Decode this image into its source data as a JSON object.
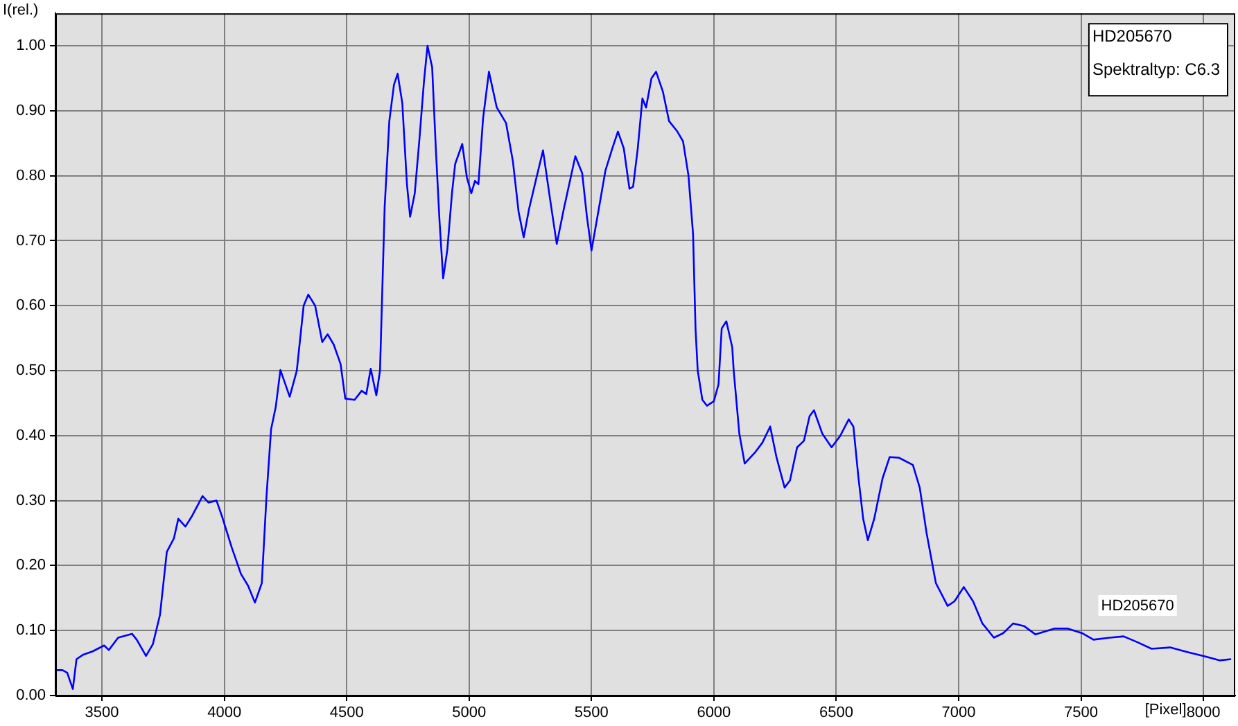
{
  "chart_data": {
    "type": "line",
    "xlabel": "[Pixel]",
    "ylabel": "I(rel.)",
    "annotations": [
      "HD205670",
      "Spektraltyp: C6.3"
    ],
    "xlim": [
      3310,
      8130
    ],
    "ylim": [
      0,
      1.05
    ],
    "xticks": [
      3500,
      4000,
      4500,
      5000,
      5500,
      6000,
      6500,
      7000,
      7500,
      8000
    ],
    "yticks": [
      {
        "value": 0,
        "label": "0.00"
      },
      {
        "value": 0.1,
        "label": "0.10"
      },
      {
        "value": 0.2,
        "label": "0.20"
      },
      {
        "value": 0.3,
        "label": "0.30"
      },
      {
        "value": 0.4,
        "label": "0.40"
      },
      {
        "value": 0.5,
        "label": "0.50"
      },
      {
        "value": 0.6,
        "label": "0.60"
      },
      {
        "value": 0.7,
        "label": "0.70"
      },
      {
        "value": 0.8,
        "label": "0.80"
      },
      {
        "value": 0.9,
        "label": "0.90"
      },
      {
        "value": 1,
        "label": "1.00"
      }
    ],
    "grid": true,
    "legend": false,
    "marker": "none",
    "line_style": "solid",
    "series": [
      {
        "name": "HD205670",
        "color": "#0000ff",
        "x": [
          3311,
          3339,
          3358,
          3381,
          3396,
          3424,
          3462,
          3509,
          3528,
          3566,
          3623,
          3642,
          3680,
          3708,
          3737,
          3765,
          3794,
          3812,
          3841,
          3869,
          3911,
          3935,
          3968,
          3992,
          4030,
          4068,
          4097,
          4125,
          4153,
          4172,
          4191,
          4210,
          4229,
          4267,
          4296,
          4324,
          4343,
          4371,
          4400,
          4422,
          4447,
          4475,
          4494,
          4532,
          4561,
          4580,
          4598,
          4621,
          4636,
          4655,
          4674,
          4693,
          4708,
          4727,
          4746,
          4759,
          4778,
          4797,
          4816,
          4830,
          4849,
          4864,
          4879,
          4894,
          4911,
          4930,
          4943,
          4972,
          4991,
          5009,
          5024,
          5038,
          5057,
          5081,
          5113,
          5151,
          5179,
          5202,
          5223,
          5245,
          5277,
          5302,
          5330,
          5358,
          5387,
          5434,
          5462,
          5481,
          5500,
          5528,
          5557,
          5585,
          5608,
          5632,
          5655,
          5670,
          5689,
          5708,
          5723,
          5745,
          5764,
          5792,
          5817,
          5849,
          5874,
          5896,
          5915,
          5925,
          5934,
          5953,
          5972,
          6000,
          6019,
          6032,
          6051,
          6075,
          6081,
          6104,
          6126,
          6170,
          6198,
          6230,
          6255,
          6289,
          6311,
          6340,
          6368,
          6391,
          6409,
          6443,
          6481,
          6515,
          6551,
          6570,
          6591,
          6610,
          6629,
          6655,
          6689,
          6718,
          6756,
          6813,
          6841,
          6869,
          6907,
          6955,
          6983,
          7021,
          7059,
          7097,
          7144,
          7182,
          7223,
          7267,
          7314,
          7390,
          7447,
          7504,
          7551,
          7617,
          7674,
          7731,
          7788,
          7864,
          7934,
          8009,
          8066,
          8113
        ],
        "values": [
          0.039,
          0.039,
          0.035,
          0.01,
          0.056,
          0.063,
          0.068,
          0.077,
          0.07,
          0.089,
          0.095,
          0.086,
          0.061,
          0.079,
          0.124,
          0.221,
          0.242,
          0.272,
          0.26,
          0.277,
          0.307,
          0.297,
          0.3,
          0.274,
          0.228,
          0.187,
          0.169,
          0.143,
          0.173,
          0.305,
          0.41,
          0.444,
          0.501,
          0.46,
          0.5,
          0.6,
          0.617,
          0.6,
          0.544,
          0.556,
          0.54,
          0.51,
          0.457,
          0.455,
          0.469,
          0.464,
          0.503,
          0.462,
          0.5,
          0.752,
          0.884,
          0.94,
          0.957,
          0.912,
          0.787,
          0.737,
          0.773,
          0.856,
          0.947,
          1.0,
          0.967,
          0.842,
          0.731,
          0.642,
          0.686,
          0.773,
          0.818,
          0.849,
          0.797,
          0.773,
          0.792,
          0.787,
          0.888,
          0.96,
          0.905,
          0.881,
          0.822,
          0.745,
          0.705,
          0.749,
          0.8,
          0.839,
          0.766,
          0.695,
          0.749,
          0.83,
          0.804,
          0.738,
          0.685,
          0.745,
          0.808,
          0.842,
          0.868,
          0.842,
          0.78,
          0.783,
          0.842,
          0.919,
          0.905,
          0.95,
          0.96,
          0.929,
          0.884,
          0.869,
          0.853,
          0.801,
          0.71,
          0.565,
          0.5,
          0.455,
          0.446,
          0.453,
          0.479,
          0.565,
          0.576,
          0.536,
          0.5,
          0.403,
          0.357,
          0.375,
          0.389,
          0.414,
          0.368,
          0.32,
          0.331,
          0.382,
          0.392,
          0.43,
          0.439,
          0.403,
          0.382,
          0.399,
          0.425,
          0.414,
          0.334,
          0.272,
          0.239,
          0.272,
          0.334,
          0.367,
          0.366,
          0.355,
          0.32,
          0.25,
          0.173,
          0.138,
          0.145,
          0.167,
          0.145,
          0.111,
          0.089,
          0.096,
          0.111,
          0.107,
          0.094,
          0.103,
          0.103,
          0.096,
          0.086,
          0.089,
          0.091,
          0.082,
          0.072,
          0.074,
          0.067,
          0.06,
          0.054,
          0.056
        ]
      }
    ]
  }
}
